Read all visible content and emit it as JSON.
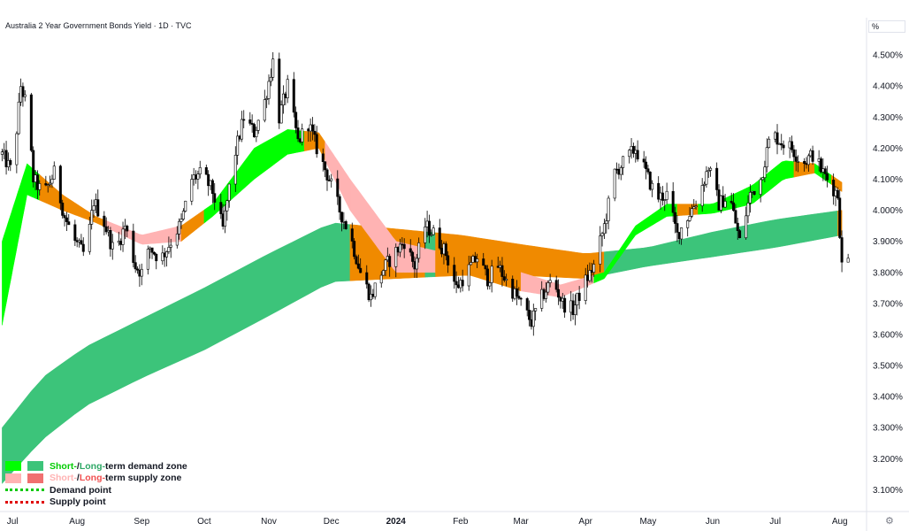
{
  "title": "Australia 2 Year Government Bonds Yield · 1D · TVC",
  "unit": "%",
  "settings_icon": "gear-icon",
  "colors": {
    "short_demand": "#00ff00",
    "long_demand": "#3cc47a",
    "short_supply": "#ffb3b3",
    "long_supply": "#f08a00",
    "demand_point": "#00c800",
    "supply_point": "#e00000"
  },
  "legend": {
    "demand_short": "Short-",
    "demand_slash": " / ",
    "demand_long": "Long-",
    "demand_rest": "term demand zone",
    "supply_short": "Short-",
    "supply_slash": " / ",
    "supply_long": "Long-",
    "supply_rest": "term supply zone",
    "demand_point": "Demand point",
    "supply_point": "Supply point"
  },
  "chart_data": {
    "type": "candlestick",
    "title": "Australia 2 Year Government Bonds Yield · 1D · TVC",
    "ylabel": "%",
    "ylim": [
      3.03,
      4.62
    ],
    "xlim": [
      "2023-06-25",
      "2024-08-13"
    ],
    "y_ticks": [
      "4.500%",
      "4.400%",
      "4.300%",
      "4.200%",
      "4.100%",
      "4.000%",
      "3.900%",
      "3.800%",
      "3.700%",
      "3.600%",
      "3.500%",
      "3.400%",
      "3.300%",
      "3.200%",
      "3.100%"
    ],
    "x_ticks": [
      {
        "label": "Jul",
        "date": "2023-07-01"
      },
      {
        "label": "Aug",
        "date": "2023-08-01"
      },
      {
        "label": "Sep",
        "date": "2023-09-01"
      },
      {
        "label": "Oct",
        "date": "2023-10-01"
      },
      {
        "label": "Nov",
        "date": "2023-11-01"
      },
      {
        "label": "Dec",
        "date": "2023-12-01"
      },
      {
        "label": "2024",
        "date": "2024-01-01",
        "bold": true
      },
      {
        "label": "Feb",
        "date": "2024-02-01"
      },
      {
        "label": "Mar",
        "date": "2024-03-01"
      },
      {
        "label": "Apr",
        "date": "2024-04-01"
      },
      {
        "label": "May",
        "date": "2024-05-01"
      },
      {
        "label": "Jun",
        "date": "2024-06-01"
      },
      {
        "label": "Jul",
        "date": "2024-07-01"
      },
      {
        "label": "Aug",
        "date": "2024-08-01"
      }
    ],
    "price_path": [
      [
        "2023-06-26",
        4.18
      ],
      [
        "2023-07-01",
        4.12
      ],
      [
        "2023-07-05",
        4.4
      ],
      [
        "2023-07-08",
        4.33
      ],
      [
        "2023-07-11",
        4.1
      ],
      [
        "2023-07-16",
        4.05
      ],
      [
        "2023-07-21",
        4.12
      ],
      [
        "2023-07-26",
        3.98
      ],
      [
        "2023-07-31",
        3.9
      ],
      [
        "2023-08-05",
        3.85
      ],
      [
        "2023-08-09",
        4.03
      ],
      [
        "2023-08-14",
        3.96
      ],
      [
        "2023-08-19",
        3.86
      ],
      [
        "2023-08-24",
        3.95
      ],
      [
        "2023-08-29",
        3.82
      ],
      [
        "2023-09-01",
        3.8
      ],
      [
        "2023-09-05",
        3.88
      ],
      [
        "2023-09-10",
        3.84
      ],
      [
        "2023-09-15",
        3.9
      ],
      [
        "2023-09-20",
        3.96
      ],
      [
        "2023-09-25",
        4.1
      ],
      [
        "2023-09-30",
        4.12
      ],
      [
        "2023-10-05",
        4.06
      ],
      [
        "2023-10-10",
        3.94
      ],
      [
        "2023-10-15",
        4.16
      ],
      [
        "2023-10-20",
        4.3
      ],
      [
        "2023-10-25",
        4.25
      ],
      [
        "2023-10-30",
        4.35
      ],
      [
        "2023-11-03",
        4.48
      ],
      [
        "2023-11-06",
        4.3
      ],
      [
        "2023-11-10",
        4.4
      ],
      [
        "2023-11-15",
        4.22
      ],
      [
        "2023-11-20",
        4.28
      ],
      [
        "2023-11-25",
        4.18
      ],
      [
        "2023-11-30",
        4.1
      ],
      [
        "2023-12-05",
        4.0
      ],
      [
        "2023-12-10",
        3.92
      ],
      [
        "2023-12-15",
        3.8
      ],
      [
        "2023-12-20",
        3.72
      ],
      [
        "2023-12-25",
        3.8
      ],
      [
        "2023-12-30",
        3.85
      ],
      [
        "2024-01-05",
        3.9
      ],
      [
        "2024-01-10",
        3.82
      ],
      [
        "2024-01-15",
        3.95
      ],
      [
        "2024-01-20",
        3.92
      ],
      [
        "2024-01-25",
        3.86
      ],
      [
        "2024-01-30",
        3.75
      ],
      [
        "2024-02-04",
        3.8
      ],
      [
        "2024-02-09",
        3.85
      ],
      [
        "2024-02-14",
        3.78
      ],
      [
        "2024-02-19",
        3.82
      ],
      [
        "2024-02-24",
        3.76
      ],
      [
        "2024-03-01",
        3.7
      ],
      [
        "2024-03-06",
        3.64
      ],
      [
        "2024-03-11",
        3.72
      ],
      [
        "2024-03-16",
        3.78
      ],
      [
        "2024-03-21",
        3.7
      ],
      [
        "2024-03-26",
        3.68
      ],
      [
        "2024-03-31",
        3.76
      ],
      [
        "2024-04-05",
        3.82
      ],
      [
        "2024-04-10",
        3.95
      ],
      [
        "2024-04-15",
        4.12
      ],
      [
        "2024-04-20",
        4.16
      ],
      [
        "2024-04-25",
        4.2
      ],
      [
        "2024-04-30",
        4.12
      ],
      [
        "2024-05-05",
        4.04
      ],
      [
        "2024-05-10",
        4.05
      ],
      [
        "2024-05-15",
        3.92
      ],
      [
        "2024-05-20",
        3.98
      ],
      [
        "2024-05-25",
        4.04
      ],
      [
        "2024-05-30",
        4.14
      ],
      [
        "2024-06-04",
        4.02
      ],
      [
        "2024-06-09",
        4.05
      ],
      [
        "2024-06-14",
        3.9
      ],
      [
        "2024-06-19",
        4.05
      ],
      [
        "2024-06-24",
        4.1
      ],
      [
        "2024-06-29",
        4.25
      ],
      [
        "2024-07-04",
        4.22
      ],
      [
        "2024-07-09",
        4.2
      ],
      [
        "2024-07-14",
        4.15
      ],
      [
        "2024-07-19",
        4.18
      ],
      [
        "2024-07-24",
        4.12
      ],
      [
        "2024-07-28",
        4.08
      ],
      [
        "2024-07-31",
        4.05
      ],
      [
        "2024-08-02",
        3.82
      ],
      [
        "2024-08-05",
        3.84
      ]
    ],
    "bands": [
      {
        "name": "long_term_zone",
        "points": [
          [
            "2023-06-26",
            3.12,
            3.3
          ],
          [
            "2023-07-15",
            3.26,
            3.46
          ],
          [
            "2023-08-05",
            3.37,
            3.56
          ],
          [
            "2023-09-01",
            3.46,
            3.65
          ],
          [
            "2023-10-01",
            3.55,
            3.75
          ],
          [
            "2023-11-01",
            3.66,
            3.86
          ],
          [
            "2023-12-01",
            3.77,
            3.96
          ],
          [
            "2024-01-01",
            3.78,
            3.94
          ],
          [
            "2024-02-01",
            3.79,
            3.92
          ],
          [
            "2024-03-01",
            3.79,
            3.89
          ],
          [
            "2024-04-01",
            3.78,
            3.86
          ],
          [
            "2024-05-01",
            3.82,
            3.88
          ],
          [
            "2024-06-01",
            3.85,
            3.93
          ],
          [
            "2024-07-01",
            3.88,
            3.97
          ],
          [
            "2024-08-02",
            3.92,
            4.0
          ]
        ],
        "segments": [
          {
            "from": "2023-06-26",
            "to": "2023-12-10",
            "zone": "long-term demand zone"
          },
          {
            "from": "2023-12-10",
            "to": "2024-01-15",
            "zone": "long-term supply zone"
          },
          {
            "from": "2024-01-15",
            "to": "2024-01-20",
            "zone": "long-term demand zone"
          },
          {
            "from": "2024-01-20",
            "to": "2024-04-10",
            "zone": "long-term supply zone"
          },
          {
            "from": "2024-04-10",
            "to": "2024-07-31",
            "zone": "long-term demand zone"
          },
          {
            "from": "2024-07-31",
            "to": "2024-08-02",
            "zone": "long-term supply zone"
          }
        ]
      },
      {
        "name": "short_term_zone",
        "points": [
          [
            "2023-06-26",
            3.63,
            3.9
          ],
          [
            "2023-07-08",
            4.05,
            4.15
          ],
          [
            "2023-07-25",
            4.0,
            4.05
          ],
          [
            "2023-08-10",
            3.96,
            3.98
          ],
          [
            "2023-09-01",
            3.89,
            3.92
          ],
          [
            "2023-09-20",
            3.9,
            3.95
          ],
          [
            "2023-10-05",
            3.98,
            4.02
          ],
          [
            "2023-10-25",
            4.1,
            4.2
          ],
          [
            "2023-11-10",
            4.18,
            4.26
          ],
          [
            "2023-11-25",
            4.2,
            4.25
          ],
          [
            "2023-12-10",
            4.0,
            4.1
          ],
          [
            "2024-01-01",
            3.8,
            3.9
          ],
          [
            "2024-02-01",
            3.8,
            3.85
          ],
          [
            "2024-03-01",
            3.74,
            3.8
          ],
          [
            "2024-03-20",
            3.72,
            3.76
          ],
          [
            "2024-04-10",
            3.78,
            3.8
          ],
          [
            "2024-04-25",
            3.92,
            3.95
          ],
          [
            "2024-05-10",
            3.98,
            4.02
          ],
          [
            "2024-06-01",
            3.99,
            4.02
          ],
          [
            "2024-06-20",
            4.02,
            4.08
          ],
          [
            "2024-07-05",
            4.1,
            4.16
          ],
          [
            "2024-07-20",
            4.12,
            4.15
          ],
          [
            "2024-08-02",
            4.06,
            4.09
          ]
        ],
        "segments": [
          {
            "from": "2023-06-26",
            "to": "2023-07-14",
            "zone": "short-term demand zone"
          },
          {
            "from": "2023-07-14",
            "to": "2023-08-14",
            "zone": "long-term supply zone"
          },
          {
            "from": "2023-08-14",
            "to": "2023-09-20",
            "zone": "short-term supply zone"
          },
          {
            "from": "2023-09-20",
            "to": "2023-10-01",
            "zone": "long-term supply zone"
          },
          {
            "from": "2023-10-01",
            "to": "2023-11-18",
            "zone": "short-term demand zone"
          },
          {
            "from": "2023-11-18",
            "to": "2023-11-28",
            "zone": "long-term supply zone"
          },
          {
            "from": "2023-11-28",
            "to": "2023-12-10",
            "zone": "short-term supply zone"
          },
          {
            "from": "2023-12-10",
            "to": "2024-01-20",
            "zone": "short-term supply zone"
          },
          {
            "from": "2024-01-20",
            "to": "2024-03-01",
            "zone": "long-term supply zone"
          },
          {
            "from": "2024-03-01",
            "to": "2024-04-05",
            "zone": "short-term supply zone"
          },
          {
            "from": "2024-04-05",
            "to": "2024-05-15",
            "zone": "short-term demand zone"
          },
          {
            "from": "2024-05-15",
            "to": "2024-05-25",
            "zone": "long-term supply zone"
          },
          {
            "from": "2024-05-25",
            "to": "2024-07-10",
            "zone": "short-term demand zone"
          },
          {
            "from": "2024-07-10",
            "to": "2024-07-20",
            "zone": "long-term supply zone"
          },
          {
            "from": "2024-07-20",
            "to": "2024-07-28",
            "zone": "short-term demand zone"
          },
          {
            "from": "2024-07-28",
            "to": "2024-08-02",
            "zone": "long-term supply zone"
          }
        ]
      }
    ],
    "grid": false,
    "legend_position": "bottom-left"
  }
}
